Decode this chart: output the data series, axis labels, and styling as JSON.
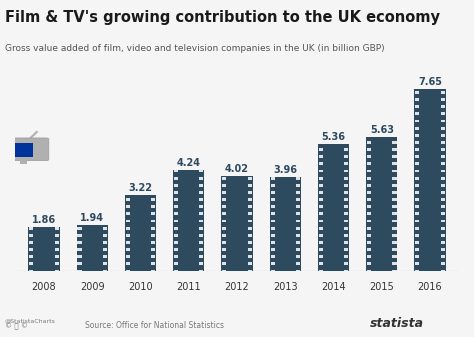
{
  "title": "Film & TV's growing contribution to the UK economy",
  "subtitle": "Gross value added of film, video and television companies in the UK (in billion GBP)",
  "years": [
    "2008",
    "2009",
    "2010",
    "2011",
    "2012",
    "2013",
    "2014",
    "2015",
    "2016"
  ],
  "values": [
    1.86,
    1.94,
    3.22,
    4.24,
    4.02,
    3.96,
    5.36,
    5.63,
    7.65
  ],
  "bar_color": "#2d4a5e",
  "bar_edge_color": "#ffffff",
  "background_color": "#f5f5f5",
  "title_color": "#1a1a1a",
  "subtitle_color": "#555555",
  "label_color": "#2d4a5e",
  "footer_text": "Source: Office for National Statistics",
  "statista_text": "statista",
  "ylim": [
    0,
    8.5
  ]
}
